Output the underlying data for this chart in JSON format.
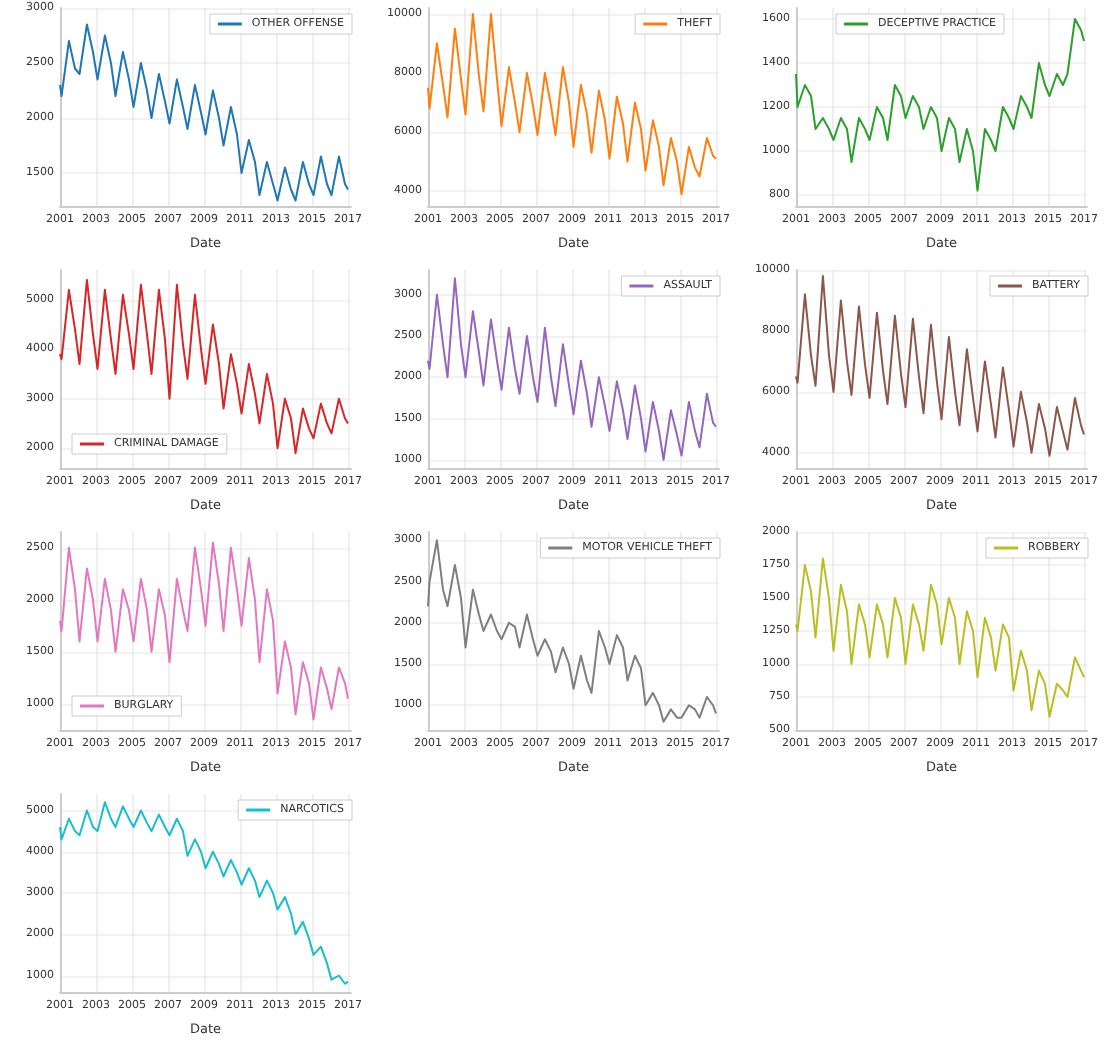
{
  "chart_data": [
    {
      "type": "line",
      "xlabel": "Date",
      "legend": "top right",
      "grid": true,
      "xlim": [
        "2001-01",
        "2017-03"
      ],
      "xticks": [
        "2001",
        "2003",
        "2005",
        "2007",
        "2009",
        "2011",
        "2013",
        "2015",
        "2017"
      ],
      "ylim": [
        1200,
        3000
      ],
      "yticks": [
        1500,
        2000,
        2500,
        3000
      ],
      "x": [
        "2001-01",
        "2001-02",
        "2001-07",
        "2001-11",
        "2002-02",
        "2002-07",
        "2002-11",
        "2003-02",
        "2003-07",
        "2003-11",
        "2004-02",
        "2004-07",
        "2004-11",
        "2005-02",
        "2005-07",
        "2005-11",
        "2006-02",
        "2006-07",
        "2006-11",
        "2007-02",
        "2007-07",
        "2007-11",
        "2008-02",
        "2008-07",
        "2008-11",
        "2009-02",
        "2009-07",
        "2009-11",
        "2010-02",
        "2010-07",
        "2010-11",
        "2011-02",
        "2011-07",
        "2011-11",
        "2012-02",
        "2012-07",
        "2012-11",
        "2013-02",
        "2013-07",
        "2013-11",
        "2014-02",
        "2014-07",
        "2014-11",
        "2015-02",
        "2015-07",
        "2015-11",
        "2016-02",
        "2016-07",
        "2016-11",
        "2017-01"
      ],
      "series": [
        {
          "name": "OTHER OFFENSE",
          "color": "#1f77b4",
          "values": [
            2300,
            2200,
            2700,
            2450,
            2400,
            2850,
            2600,
            2350,
            2750,
            2500,
            2200,
            2600,
            2350,
            2100,
            2500,
            2250,
            2000,
            2400,
            2150,
            1950,
            2350,
            2100,
            1900,
            2300,
            2050,
            1850,
            2250,
            2000,
            1750,
            2100,
            1850,
            1500,
            1800,
            1600,
            1300,
            1600,
            1400,
            1250,
            1550,
            1350,
            1250,
            1600,
            1400,
            1300,
            1650,
            1400,
            1300,
            1650,
            1400,
            1350
          ]
        }
      ]
    },
    {
      "type": "line",
      "xlabel": "Date",
      "legend": "top right",
      "grid": true,
      "xlim": [
        "2001-01",
        "2017-03"
      ],
      "xticks": [
        "2001",
        "2003",
        "2005",
        "2007",
        "2009",
        "2011",
        "2013",
        "2015",
        "2017"
      ],
      "ylim": [
        3500,
        10200
      ],
      "yticks": [
        4000,
        6000,
        8000,
        10000
      ],
      "x": [
        "2001-01",
        "2001-02",
        "2001-07",
        "2001-11",
        "2002-02",
        "2002-07",
        "2002-11",
        "2003-02",
        "2003-07",
        "2003-11",
        "2004-02",
        "2004-07",
        "2004-11",
        "2005-02",
        "2005-07",
        "2005-11",
        "2006-02",
        "2006-07",
        "2006-11",
        "2007-02",
        "2007-07",
        "2007-11",
        "2008-02",
        "2008-07",
        "2008-11",
        "2009-02",
        "2009-07",
        "2009-11",
        "2010-02",
        "2010-07",
        "2010-11",
        "2011-02",
        "2011-07",
        "2011-11",
        "2012-02",
        "2012-07",
        "2012-11",
        "2013-02",
        "2013-07",
        "2013-11",
        "2014-02",
        "2014-07",
        "2014-11",
        "2015-02",
        "2015-07",
        "2015-11",
        "2016-02",
        "2016-07",
        "2016-11",
        "2017-01"
      ],
      "series": [
        {
          "name": "THEFT",
          "color": "#ff7f0e",
          "values": [
            7500,
            6800,
            9000,
            7600,
            6500,
            9500,
            7800,
            6600,
            10000,
            7900,
            6700,
            10000,
            7800,
            6200,
            8200,
            7000,
            6000,
            8000,
            6900,
            5900,
            8000,
            6900,
            5900,
            8200,
            7000,
            5500,
            7600,
            6600,
            5300,
            7400,
            6400,
            5100,
            7200,
            6300,
            5000,
            7000,
            6100,
            4700,
            6400,
            5500,
            4200,
            5800,
            5000,
            3900,
            5500,
            4800,
            4500,
            5800,
            5200,
            5100
          ]
        }
      ]
    },
    {
      "type": "line",
      "xlabel": "Date",
      "legend": "top",
      "grid": true,
      "xlim": [
        "2001-01",
        "2017-03"
      ],
      "xticks": [
        "2001",
        "2003",
        "2005",
        "2007",
        "2009",
        "2011",
        "2013",
        "2015",
        "2017"
      ],
      "ylim": [
        750,
        1650
      ],
      "yticks": [
        800,
        1000,
        1200,
        1400,
        1600
      ],
      "x": [
        "2001-01",
        "2001-02",
        "2001-07",
        "2001-11",
        "2002-02",
        "2002-07",
        "2002-11",
        "2003-02",
        "2003-07",
        "2003-11",
        "2004-02",
        "2004-07",
        "2004-11",
        "2005-02",
        "2005-07",
        "2005-11",
        "2006-02",
        "2006-07",
        "2006-11",
        "2007-02",
        "2007-07",
        "2007-11",
        "2008-02",
        "2008-07",
        "2008-11",
        "2009-02",
        "2009-07",
        "2009-11",
        "2010-02",
        "2010-07",
        "2010-11",
        "2011-02",
        "2011-07",
        "2011-11",
        "2012-02",
        "2012-07",
        "2012-11",
        "2013-02",
        "2013-07",
        "2013-11",
        "2014-02",
        "2014-07",
        "2014-11",
        "2015-02",
        "2015-07",
        "2015-11",
        "2016-02",
        "2016-07",
        "2016-11",
        "2017-01"
      ],
      "series": [
        {
          "name": "DECEPTIVE PRACTICE",
          "color": "#2ca02c",
          "values": [
            1350,
            1200,
            1300,
            1250,
            1100,
            1150,
            1100,
            1050,
            1150,
            1100,
            950,
            1150,
            1100,
            1050,
            1200,
            1150,
            1050,
            1300,
            1250,
            1150,
            1250,
            1200,
            1100,
            1200,
            1150,
            1000,
            1150,
            1100,
            950,
            1100,
            1000,
            820,
            1100,
            1050,
            1000,
            1200,
            1150,
            1100,
            1250,
            1200,
            1150,
            1400,
            1300,
            1250,
            1350,
            1300,
            1350,
            1600,
            1550,
            1500
          ]
        }
      ]
    },
    {
      "type": "line",
      "xlabel": "Date",
      "legend": "bottom left",
      "grid": true,
      "xlim": [
        "2001-01",
        "2017-03"
      ],
      "xticks": [
        "2001",
        "2003",
        "2005",
        "2007",
        "2009",
        "2011",
        "2013",
        "2015",
        "2017"
      ],
      "ylim": [
        1600,
        5600
      ],
      "yticks": [
        2000,
        3000,
        4000,
        5000
      ],
      "x": [
        "2001-01",
        "2001-02",
        "2001-07",
        "2001-11",
        "2002-02",
        "2002-07",
        "2002-11",
        "2003-02",
        "2003-07",
        "2003-11",
        "2004-02",
        "2004-07",
        "2004-11",
        "2005-02",
        "2005-07",
        "2005-11",
        "2006-02",
        "2006-07",
        "2006-11",
        "2007-02",
        "2007-07",
        "2007-11",
        "2008-02",
        "2008-07",
        "2008-11",
        "2009-02",
        "2009-07",
        "2009-11",
        "2010-02",
        "2010-07",
        "2010-11",
        "2011-02",
        "2011-07",
        "2011-11",
        "2012-02",
        "2012-07",
        "2012-11",
        "2013-02",
        "2013-07",
        "2013-11",
        "2014-02",
        "2014-07",
        "2014-11",
        "2015-02",
        "2015-07",
        "2015-11",
        "2016-02",
        "2016-07",
        "2016-11",
        "2017-01"
      ],
      "series": [
        {
          "name": "CRIMINAL DAMAGE",
          "color": "#d62728",
          "values": [
            3900,
            3800,
            5200,
            4400,
            3700,
            5400,
            4300,
            3600,
            5200,
            4200,
            3500,
            5100,
            4300,
            3600,
            5300,
            4300,
            3500,
            5200,
            4200,
            3000,
            5300,
            4100,
            3400,
            5100,
            4000,
            3300,
            4500,
            3700,
            2800,
            3900,
            3300,
            2700,
            3700,
            3100,
            2500,
            3500,
            2900,
            2000,
            3000,
            2600,
            1900,
            2800,
            2400,
            2200,
            2900,
            2500,
            2300,
            3000,
            2600,
            2500
          ]
        }
      ]
    },
    {
      "type": "line",
      "xlabel": "Date",
      "legend": "top right",
      "grid": true,
      "xlim": [
        "2001-01",
        "2017-03"
      ],
      "xticks": [
        "2001",
        "2003",
        "2005",
        "2007",
        "2009",
        "2011",
        "2013",
        "2015",
        "2017"
      ],
      "ylim": [
        900,
        3300
      ],
      "yticks": [
        1000,
        1500,
        2000,
        2500,
        3000
      ],
      "x": [
        "2001-01",
        "2001-02",
        "2001-07",
        "2001-11",
        "2002-02",
        "2002-07",
        "2002-11",
        "2003-02",
        "2003-07",
        "2003-11",
        "2004-02",
        "2004-07",
        "2004-11",
        "2005-02",
        "2005-07",
        "2005-11",
        "2006-02",
        "2006-07",
        "2006-11",
        "2007-02",
        "2007-07",
        "2007-11",
        "2008-02",
        "2008-07",
        "2008-11",
        "2009-02",
        "2009-07",
        "2009-11",
        "2010-02",
        "2010-07",
        "2010-11",
        "2011-02",
        "2011-07",
        "2011-11",
        "2012-02",
        "2012-07",
        "2012-11",
        "2013-02",
        "2013-07",
        "2013-11",
        "2014-02",
        "2014-07",
        "2014-11",
        "2015-02",
        "2015-07",
        "2015-11",
        "2016-02",
        "2016-07",
        "2016-11",
        "2017-01"
      ],
      "series": [
        {
          "name": "ASSAULT",
          "color": "#9467bd",
          "values": [
            2200,
            2100,
            3000,
            2400,
            2000,
            3200,
            2400,
            2000,
            2800,
            2300,
            1900,
            2700,
            2200,
            1850,
            2600,
            2100,
            1800,
            2500,
            2000,
            1700,
            2600,
            2000,
            1650,
            2400,
            1900,
            1550,
            2200,
            1800,
            1400,
            2000,
            1650,
            1350,
            1950,
            1600,
            1250,
            1900,
            1500,
            1100,
            1700,
            1350,
            1000,
            1600,
            1300,
            1050,
            1700,
            1350,
            1150,
            1800,
            1450,
            1400
          ]
        }
      ]
    },
    {
      "type": "line",
      "xlabel": "Date",
      "legend": "top right",
      "grid": true,
      "xlim": [
        "2001-01",
        "2017-03"
      ],
      "xticks": [
        "2001",
        "2003",
        "2005",
        "2007",
        "2009",
        "2011",
        "2013",
        "2015",
        "2017"
      ],
      "ylim": [
        3500,
        10000
      ],
      "yticks": [
        4000,
        6000,
        8000,
        10000
      ],
      "x": [
        "2001-01",
        "2001-02",
        "2001-07",
        "2001-11",
        "2002-02",
        "2002-07",
        "2002-11",
        "2003-02",
        "2003-07",
        "2003-11",
        "2004-02",
        "2004-07",
        "2004-11",
        "2005-02",
        "2005-07",
        "2005-11",
        "2006-02",
        "2006-07",
        "2006-11",
        "2007-02",
        "2007-07",
        "2007-11",
        "2008-02",
        "2008-07",
        "2008-11",
        "2009-02",
        "2009-07",
        "2009-11",
        "2010-02",
        "2010-07",
        "2010-11",
        "2011-02",
        "2011-07",
        "2011-11",
        "2012-02",
        "2012-07",
        "2012-11",
        "2013-02",
        "2013-07",
        "2013-11",
        "2014-02",
        "2014-07",
        "2014-11",
        "2015-02",
        "2015-07",
        "2015-11",
        "2016-02",
        "2016-07",
        "2016-11",
        "2017-01"
      ],
      "series": [
        {
          "name": "BATTERY",
          "color": "#8c564b",
          "values": [
            6500,
            6300,
            9200,
            7200,
            6200,
            9800,
            7200,
            6000,
            9000,
            7000,
            5900,
            8800,
            6900,
            5800,
            8600,
            6700,
            5600,
            8500,
            6600,
            5500,
            8400,
            6500,
            5300,
            8200,
            6300,
            5100,
            7800,
            6000,
            4900,
            7400,
            5800,
            4700,
            7000,
            5600,
            4500,
            6800,
            5400,
            4200,
            6000,
            5000,
            4000,
            5600,
            4800,
            3900,
            5500,
            4700,
            4100,
            5800,
            4900,
            4600
          ]
        }
      ]
    },
    {
      "type": "line",
      "xlabel": "Date",
      "legend": "bottom left",
      "grid": true,
      "xlim": [
        "2001-01",
        "2017-03"
      ],
      "xticks": [
        "2001",
        "2003",
        "2005",
        "2007",
        "2009",
        "2011",
        "2013",
        "2015",
        "2017"
      ],
      "ylim": [
        750,
        2650
      ],
      "yticks": [
        1000,
        1500,
        2000,
        2500
      ],
      "x": [
        "2001-01",
        "2001-02",
        "2001-07",
        "2001-11",
        "2002-02",
        "2002-07",
        "2002-11",
        "2003-02",
        "2003-07",
        "2003-11",
        "2004-02",
        "2004-07",
        "2004-11",
        "2005-02",
        "2005-07",
        "2005-11",
        "2006-02",
        "2006-07",
        "2006-11",
        "2007-02",
        "2007-07",
        "2007-11",
        "2008-02",
        "2008-07",
        "2008-11",
        "2009-02",
        "2009-07",
        "2009-11",
        "2010-02",
        "2010-07",
        "2010-11",
        "2011-02",
        "2011-07",
        "2011-11",
        "2012-02",
        "2012-07",
        "2012-11",
        "2013-02",
        "2013-07",
        "2013-11",
        "2014-02",
        "2014-07",
        "2014-11",
        "2015-02",
        "2015-07",
        "2015-11",
        "2016-02",
        "2016-07",
        "2016-11",
        "2017-01"
      ],
      "series": [
        {
          "name": "BURGLARY",
          "color": "#e377c2",
          "values": [
            1800,
            1700,
            2500,
            2100,
            1600,
            2300,
            2000,
            1600,
            2200,
            1900,
            1500,
            2100,
            1900,
            1600,
            2200,
            1900,
            1500,
            2100,
            1850,
            1400,
            2200,
            1900,
            1700,
            2500,
            2100,
            1750,
            2550,
            2150,
            1700,
            2500,
            2100,
            1750,
            2400,
            2000,
            1400,
            2100,
            1800,
            1100,
            1600,
            1350,
            900,
            1400,
            1200,
            850,
            1350,
            1150,
            950,
            1350,
            1200,
            1050
          ]
        }
      ]
    },
    {
      "type": "line",
      "xlabel": "Date",
      "legend": "top right",
      "grid": true,
      "xlim": [
        "2001-01",
        "2017-03"
      ],
      "xticks": [
        "2001",
        "2003",
        "2005",
        "2007",
        "2009",
        "2011",
        "2013",
        "2015",
        "2017"
      ],
      "ylim": [
        700,
        3100
      ],
      "yticks": [
        1000,
        1500,
        2000,
        2500,
        3000
      ],
      "x": [
        "2001-01",
        "2001-02",
        "2001-07",
        "2001-11",
        "2002-02",
        "2002-07",
        "2002-11",
        "2003-02",
        "2003-07",
        "2003-11",
        "2004-02",
        "2004-07",
        "2004-11",
        "2005-02",
        "2005-07",
        "2005-11",
        "2006-02",
        "2006-07",
        "2006-11",
        "2007-02",
        "2007-07",
        "2007-11",
        "2008-02",
        "2008-07",
        "2008-11",
        "2009-02",
        "2009-07",
        "2009-11",
        "2010-02",
        "2010-07",
        "2010-11",
        "2011-02",
        "2011-07",
        "2011-11",
        "2012-02",
        "2012-07",
        "2012-11",
        "2013-02",
        "2013-07",
        "2013-11",
        "2014-02",
        "2014-07",
        "2014-11",
        "2015-02",
        "2015-07",
        "2015-11",
        "2016-02",
        "2016-07",
        "2016-11",
        "2017-01"
      ],
      "series": [
        {
          "name": "MOTOR VEHICLE THEFT",
          "color": "#7f7f7f",
          "values": [
            2200,
            2500,
            3000,
            2400,
            2200,
            2700,
            2300,
            1700,
            2400,
            2100,
            1900,
            2100,
            1900,
            1800,
            2000,
            1950,
            1700,
            2100,
            1800,
            1600,
            1800,
            1650,
            1400,
            1700,
            1500,
            1200,
            1600,
            1300,
            1150,
            1900,
            1700,
            1500,
            1850,
            1700,
            1300,
            1600,
            1450,
            1000,
            1150,
            1000,
            800,
            950,
            850,
            850,
            1000,
            950,
            850,
            1100,
            1000,
            900
          ]
        }
      ]
    },
    {
      "type": "line",
      "xlabel": "Date",
      "legend": "top right",
      "grid": true,
      "xlim": [
        "2001-01",
        "2017-03"
      ],
      "xticks": [
        "2001",
        "2003",
        "2005",
        "2007",
        "2009",
        "2011",
        "2013",
        "2015",
        "2017"
      ],
      "ylim": [
        500,
        2000
      ],
      "yticks": [
        500,
        750,
        1000,
        1250,
        1500,
        1750,
        2000
      ],
      "x": [
        "2001-01",
        "2001-02",
        "2001-07",
        "2001-11",
        "2002-02",
        "2002-07",
        "2002-11",
        "2003-02",
        "2003-07",
        "2003-11",
        "2004-02",
        "2004-07",
        "2004-11",
        "2005-02",
        "2005-07",
        "2005-11",
        "2006-02",
        "2006-07",
        "2006-11",
        "2007-02",
        "2007-07",
        "2007-11",
        "2008-02",
        "2008-07",
        "2008-11",
        "2009-02",
        "2009-07",
        "2009-11",
        "2010-02",
        "2010-07",
        "2010-11",
        "2011-02",
        "2011-07",
        "2011-11",
        "2012-02",
        "2012-07",
        "2012-11",
        "2013-02",
        "2013-07",
        "2013-11",
        "2014-02",
        "2014-07",
        "2014-11",
        "2015-02",
        "2015-07",
        "2015-11",
        "2016-02",
        "2016-07",
        "2016-11",
        "2017-01"
      ],
      "series": [
        {
          "name": "ROBBERY",
          "color": "#bcbd22",
          "values": [
            1300,
            1250,
            1750,
            1550,
            1200,
            1800,
            1500,
            1100,
            1600,
            1400,
            1000,
            1450,
            1300,
            1050,
            1450,
            1300,
            1050,
            1500,
            1350,
            1000,
            1450,
            1300,
            1100,
            1600,
            1450,
            1150,
            1500,
            1350,
            1000,
            1400,
            1250,
            900,
            1350,
            1200,
            950,
            1300,
            1200,
            800,
            1100,
            950,
            650,
            950,
            850,
            600,
            850,
            800,
            750,
            1050,
            950,
            900
          ]
        }
      ]
    },
    {
      "type": "line",
      "xlabel": "Date",
      "legend": "top right",
      "grid": true,
      "xlim": [
        "2001-01",
        "2017-03"
      ],
      "xticks": [
        "2001",
        "2003",
        "2005",
        "2007",
        "2009",
        "2011",
        "2013",
        "2015",
        "2017"
      ],
      "ylim": [
        600,
        5400
      ],
      "yticks": [
        1000,
        2000,
        3000,
        4000,
        5000
      ],
      "x": [
        "2001-01",
        "2001-02",
        "2001-07",
        "2001-11",
        "2002-02",
        "2002-07",
        "2002-11",
        "2003-02",
        "2003-07",
        "2003-11",
        "2004-02",
        "2004-07",
        "2004-11",
        "2005-02",
        "2005-07",
        "2005-11",
        "2006-02",
        "2006-07",
        "2006-11",
        "2007-02",
        "2007-07",
        "2007-11",
        "2008-02",
        "2008-07",
        "2008-11",
        "2009-02",
        "2009-07",
        "2009-11",
        "2010-02",
        "2010-07",
        "2010-11",
        "2011-02",
        "2011-07",
        "2011-11",
        "2012-02",
        "2012-07",
        "2012-11",
        "2013-02",
        "2013-07",
        "2013-11",
        "2014-02",
        "2014-07",
        "2014-11",
        "2015-02",
        "2015-07",
        "2015-11",
        "2016-02",
        "2016-07",
        "2016-11",
        "2017-01"
      ],
      "series": [
        {
          "name": "NARCOTICS",
          "color": "#17becf",
          "values": [
            4600,
            4300,
            4800,
            4500,
            4400,
            5000,
            4600,
            4500,
            5200,
            4800,
            4600,
            5100,
            4800,
            4600,
            5000,
            4700,
            4500,
            4900,
            4600,
            4400,
            4800,
            4500,
            3900,
            4300,
            4000,
            3600,
            4000,
            3700,
            3400,
            3800,
            3500,
            3200,
            3600,
            3300,
            2900,
            3300,
            3000,
            2600,
            2900,
            2500,
            2000,
            2300,
            1900,
            1500,
            1700,
            1300,
            900,
            1000,
            800,
            850
          ]
        }
      ]
    }
  ]
}
